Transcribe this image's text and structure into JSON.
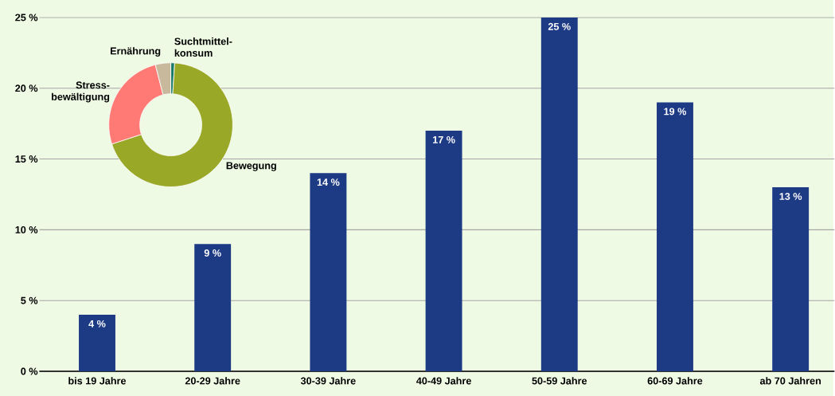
{
  "chart_data": [
    {
      "type": "bar",
      "categories": [
        "bis 19 Jahre",
        "20-29 Jahre",
        "30-39 Jahre",
        "40-49 Jahre",
        "50-59 Jahre",
        "60-69 Jahre",
        "ab 70 Jahren"
      ],
      "values": [
        4,
        9,
        14,
        17,
        25,
        19,
        13
      ],
      "color": "#1d3a85",
      "value_labels": [
        "4 %",
        "9 %",
        "14 %",
        "17 %",
        "25 %",
        "19 %",
        "13 %"
      ],
      "ylim": [
        0,
        25
      ],
      "yticks": [
        {
          "value": 0,
          "label": "0 %"
        },
        {
          "value": 5,
          "label": "5 %"
        },
        {
          "value": 10,
          "label": "10 %"
        },
        {
          "value": 15,
          "label": "15 %"
        },
        {
          "value": 20,
          "label": "20 %"
        },
        {
          "value": 25,
          "label": "25 %"
        }
      ],
      "grid": "y"
    },
    {
      "type": "donut",
      "categories": [
        "Suchtmittel-konsum",
        "Bewegung",
        "Stress-bewältigung",
        "Ernährung"
      ],
      "values": [
        1,
        69,
        26,
        4
      ],
      "colors": [
        "#1a7a6a",
        "#99a827",
        "#ff7a75",
        "#c8b89c"
      ]
    }
  ]
}
